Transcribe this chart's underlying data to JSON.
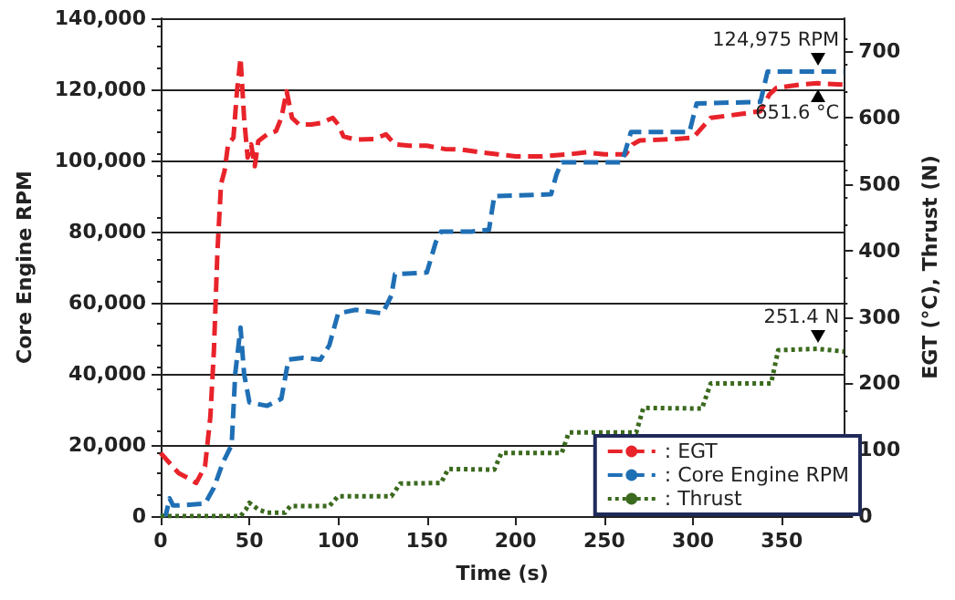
{
  "chart_data": {
    "type": "line",
    "xlabel": "Time (s)",
    "ylabel": "Core Engine RPM",
    "y2label": "EGT (°C), Thrust (N)",
    "xlim": [
      0,
      385
    ],
    "xticks": [
      0,
      50,
      100,
      150,
      200,
      250,
      300,
      350
    ],
    "ylim": [
      0,
      140000
    ],
    "yticks": [
      {
        "value": 0,
        "label": "0"
      },
      {
        "value": 20000,
        "label": "20,000"
      },
      {
        "value": 40000,
        "label": "40,000"
      },
      {
        "value": 60000,
        "label": "60,000"
      },
      {
        "value": 80000,
        "label": "80,000"
      },
      {
        "value": 100000,
        "label": "100,000"
      },
      {
        "value": 120000,
        "label": "120,000"
      },
      {
        "value": 140000,
        "label": "140,000"
      }
    ],
    "y2lim": [
      0,
      750
    ],
    "y2ticks": [
      0,
      100,
      200,
      300,
      400,
      500,
      600,
      700
    ],
    "grid": "y",
    "legend": "bottom right",
    "marker": "none",
    "series": [
      {
        "name": ": EGT",
        "color": "#e8232a",
        "axis": "y2",
        "line_style": "dashed",
        "x": [
          0,
          5,
          10,
          15,
          20,
          25,
          28,
          30,
          32,
          34,
          36,
          38,
          41,
          43,
          45,
          47,
          49,
          51,
          53,
          55,
          60,
          65,
          68,
          71,
          74,
          78,
          85,
          90,
          97,
          100,
          103,
          110,
          120,
          127,
          132,
          140,
          150,
          160,
          170,
          180,
          190,
          200,
          215,
          230,
          240,
          250,
          262,
          266,
          270,
          290,
          300,
          305,
          310,
          325,
          338,
          343,
          347,
          360,
          370,
          385
        ],
        "values": [
          95,
          80,
          65,
          58,
          50,
          75,
          150,
          250,
          400,
          500,
          520,
          560,
          570,
          640,
          690,
          600,
          540,
          560,
          527,
          565,
          575,
          580,
          600,
          640,
          600,
          590,
          590,
          592,
          600,
          590,
          572,
          567,
          568,
          575,
          560,
          558,
          558,
          553,
          552,
          548,
          545,
          542,
          542,
          545,
          548,
          545,
          545,
          560,
          566,
          568,
          570,
          585,
          600,
          605,
          610,
          635,
          645,
          650,
          652,
          650
        ]
      },
      {
        "name": ": Core Engine RPM",
        "color": "#1f6fb5",
        "axis": "y",
        "line_style": "dashed",
        "x": [
          0,
          3,
          5,
          7,
          10,
          25,
          30,
          35,
          40,
          42,
          45,
          47,
          50,
          60,
          68,
          72,
          80,
          90,
          95,
          100,
          110,
          125,
          130,
          132,
          150,
          155,
          158,
          175,
          185,
          188,
          220,
          223,
          226,
          260,
          265,
          298,
          302,
          338,
          342,
          370,
          385
        ],
        "values": [
          0,
          500,
          5000,
          3000,
          3000,
          3500,
          8000,
          15000,
          20000,
          40000,
          53000,
          40000,
          32000,
          31000,
          33000,
          44000,
          44500,
          44000,
          48000,
          57000,
          58000,
          57000,
          62000,
          68000,
          68500,
          77000,
          80000,
          80000,
          80500,
          90000,
          90500,
          96000,
          99500,
          99500,
          108000,
          108000,
          116000,
          116500,
          125000,
          124975,
          125000
        ]
      },
      {
        "name": ": Thrust",
        "color": "#3b6a1e",
        "axis": "y2",
        "line_style": "dotted",
        "x": [
          0,
          45,
          48,
          50,
          55,
          60,
          70,
          73,
          95,
          100,
          130,
          135,
          158,
          162,
          188,
          192,
          226,
          230,
          268,
          272,
          305,
          310,
          344,
          348,
          370,
          385
        ],
        "values": [
          0,
          0,
          10,
          20,
          10,
          5,
          5,
          15,
          15,
          30,
          30,
          49,
          50,
          71,
          70,
          95,
          95,
          126,
          126,
          163,
          162,
          200,
          200,
          250,
          252,
          248
        ]
      }
    ],
    "annotations": [
      "651.6 °C",
      {
        "text": "124,975 RPM",
        "x": 370,
        "y": 124975
      },
      "251.4 N"
    ]
  }
}
